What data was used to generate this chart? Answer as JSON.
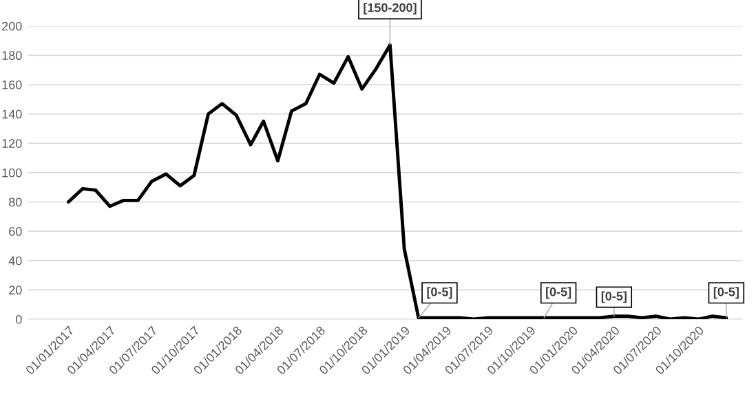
{
  "chart_data": {
    "type": "line",
    "x": [
      "2017-01-01",
      "2017-02-01",
      "2017-03-01",
      "2017-04-01",
      "2017-05-01",
      "2017-06-01",
      "2017-07-01",
      "2017-08-01",
      "2017-09-01",
      "2017-10-01",
      "2017-11-01",
      "2017-12-01",
      "2018-01-01",
      "2018-02-01",
      "2018-03-01",
      "2018-04-01",
      "2018-05-01",
      "2018-06-01",
      "2018-07-01",
      "2018-08-01",
      "2018-09-01",
      "2018-10-01",
      "2018-11-01",
      "2018-12-01",
      "2019-01-01",
      "2019-02-01",
      "2019-03-01",
      "2019-04-01",
      "2019-05-01",
      "2019-06-01",
      "2019-07-01",
      "2019-08-01",
      "2019-09-01",
      "2019-10-01",
      "2019-11-01",
      "2019-12-01",
      "2020-01-01",
      "2020-02-01",
      "2020-03-01",
      "2020-04-01",
      "2020-05-01",
      "2020-06-01",
      "2020-07-01",
      "2020-08-01",
      "2020-09-01",
      "2020-10-01",
      "2020-11-01",
      "2020-12-01"
    ],
    "series": [
      {
        "color": "#000000",
        "values": [
          80,
          89,
          88,
          77,
          81,
          81,
          94,
          99,
          91,
          98,
          140,
          147,
          139,
          119,
          135,
          108,
          142,
          147,
          167,
          161,
          179,
          157,
          171,
          187,
          48,
          1,
          1,
          1,
          1,
          0,
          1,
          1,
          1,
          1,
          1,
          1,
          1,
          1,
          1,
          2,
          2,
          1,
          2,
          0,
          1,
          0,
          2,
          1
        ]
      }
    ],
    "xlim": [
      "2016-10-05",
      "2021-01-05"
    ],
    "xticks": [
      {
        "value": "2017-01-01",
        "label": "01/01/2017"
      },
      {
        "value": "2017-04-01",
        "label": "01/04/2017"
      },
      {
        "value": "2017-07-01",
        "label": "01/07/2017"
      },
      {
        "value": "2017-10-01",
        "label": "01/10/2017"
      },
      {
        "value": "2018-01-01",
        "label": "01/01/2018"
      },
      {
        "value": "2018-04-01",
        "label": "01/04/2018"
      },
      {
        "value": "2018-07-01",
        "label": "01/07/2018"
      },
      {
        "value": "2018-10-01",
        "label": "01/10/2018"
      },
      {
        "value": "2019-01-01",
        "label": "01/01/2019"
      },
      {
        "value": "2019-04-01",
        "label": "01/04/2019"
      },
      {
        "value": "2019-07-01",
        "label": "01/07/2019"
      },
      {
        "value": "2019-10-01",
        "label": "01/10/2019"
      },
      {
        "value": "2020-01-01",
        "label": "01/01/2020"
      },
      {
        "value": "2020-04-01",
        "label": "01/04/2020"
      },
      {
        "value": "2020-07-01",
        "label": "01/07/2020"
      },
      {
        "value": "2020-10-01",
        "label": "01/10/2020"
      }
    ],
    "ylim": [
      0,
      200
    ],
    "yticks": [
      0,
      20,
      40,
      60,
      80,
      100,
      120,
      140,
      160,
      180,
      200
    ],
    "grid": "y",
    "legend": false,
    "line_style": "solid",
    "annotations": [
      {
        "text": "[150-200]",
        "x": "2018-12-01",
        "y": 187
      },
      {
        "text": "[0-5]",
        "x": "2019-02-01",
        "y": 1
      },
      {
        "text": "[0-5]",
        "x": "2019-11-01",
        "y": 1
      },
      {
        "text": "[0-5]",
        "x": "2020-04-01",
        "y": 2
      },
      {
        "text": "[0-5]",
        "x": "2020-12-01",
        "y": 1
      }
    ]
  }
}
